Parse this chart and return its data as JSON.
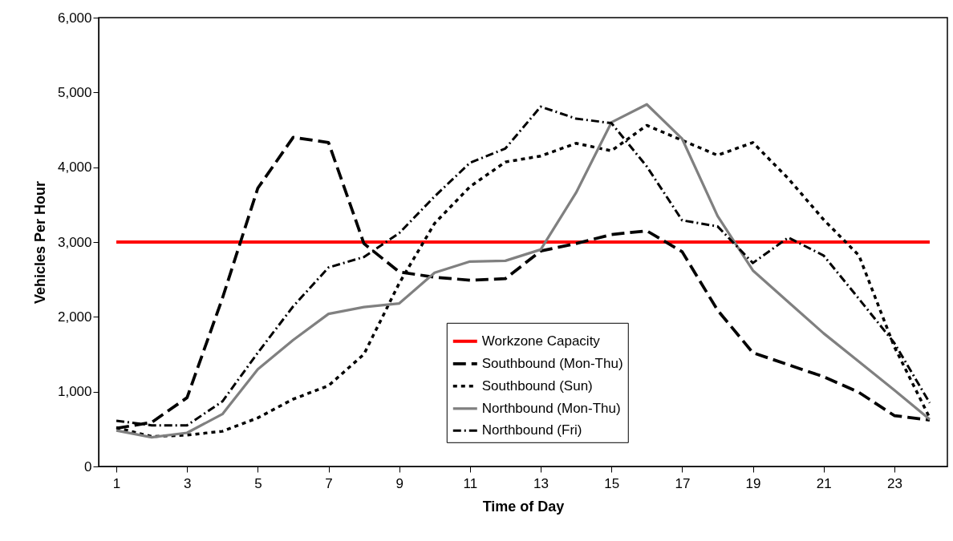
{
  "chart_data": {
    "type": "line",
    "xlabel": "Time of Day",
    "ylabel": "Vehicles Per Hour",
    "x": [
      1,
      2,
      3,
      4,
      5,
      6,
      7,
      8,
      9,
      10,
      11,
      12,
      13,
      14,
      15,
      16,
      17,
      18,
      19,
      20,
      21,
      22,
      23,
      24
    ],
    "xlim": [
      0.5,
      24.5
    ],
    "xticks": [
      1,
      3,
      5,
      7,
      9,
      11,
      13,
      15,
      17,
      19,
      21,
      23
    ],
    "ylim": [
      0,
      6000
    ],
    "yticks": [
      0,
      {
        "value": 1000,
        "label": "1,000"
      },
      {
        "value": 2000,
        "label": "2,000"
      },
      {
        "value": 3000,
        "label": "3,000"
      },
      {
        "value": 4000,
        "label": "4,000"
      },
      {
        "value": 5000,
        "label": "5,000"
      },
      {
        "value": 6000,
        "label": "6,000"
      }
    ],
    "grid": false,
    "legend": "bottom",
    "marker": "none",
    "series": [
      {
        "name": "Workzone Capacity",
        "color": "#ff0000",
        "line_style": "solid",
        "values": [
          3000,
          3000,
          3000,
          3000,
          3000,
          3000,
          3000,
          3000,
          3000,
          3000,
          3000,
          3000,
          3000,
          3000,
          3000,
          3000,
          3000,
          3000,
          3000,
          3000,
          3000,
          3000,
          3000,
          3000
        ]
      },
      {
        "name": "Southbound (Mon-Thu)",
        "color": "#000000",
        "line_style": "dashed",
        "values": [
          510,
          590,
          920,
          2250,
          3720,
          4400,
          4330,
          2980,
          2600,
          2530,
          2490,
          2510,
          2880,
          2980,
          3100,
          3150,
          2870,
          2090,
          1520,
          1360,
          1200,
          990,
          680,
          620
        ]
      },
      {
        "name": "Southbound (Sun)",
        "color": "#000000",
        "line_style": "dotted",
        "values": [
          520,
          400,
          420,
          470,
          650,
          900,
          1080,
          1500,
          2450,
          3250,
          3740,
          4070,
          4150,
          4320,
          4220,
          4560,
          4360,
          4160,
          4330,
          3850,
          3300,
          2820,
          1600,
          650
        ]
      },
      {
        "name": "Northbound (Mon-Thu)",
        "color": "#808080",
        "line_style": "solid",
        "values": [
          480,
          390,
          450,
          700,
          1300,
          1690,
          2040,
          2130,
          2180,
          2590,
          2740,
          2750,
          2900,
          3660,
          4600,
          4840,
          4380,
          3350,
          2620,
          2200,
          1780,
          1400,
          1020,
          630
        ]
      },
      {
        "name": "Northbound (Fri)",
        "color": "#000000",
        "line_style": "dashdot",
        "values": [
          610,
          550,
          550,
          870,
          1520,
          2140,
          2660,
          2800,
          3120,
          3610,
          4060,
          4250,
          4810,
          4650,
          4590,
          4010,
          3290,
          3210,
          2720,
          3060,
          2820,
          2240,
          1650,
          850
        ]
      }
    ]
  }
}
